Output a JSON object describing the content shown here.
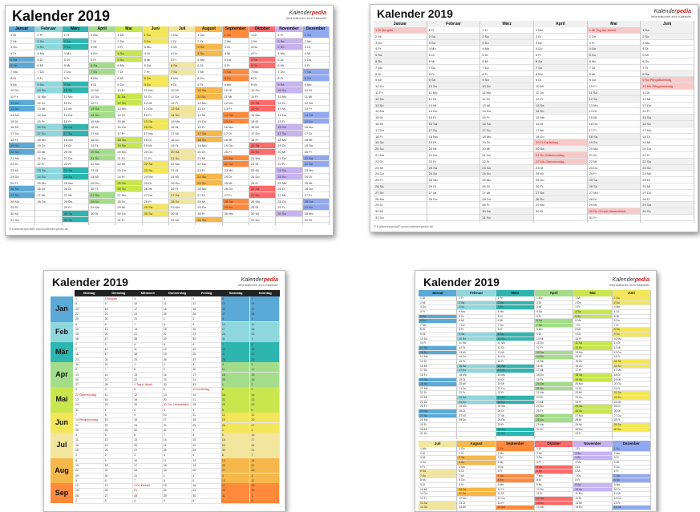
{
  "title": "Kalender 2019",
  "brand": {
    "name_pre": "Kalender",
    "name_accent": "pedia",
    "tagline": "Informationen zum Kalender"
  },
  "footer": "© Kalenderpedia®  www.kalenderpedia.de",
  "sheet1": {
    "months": [
      "Januar",
      "Februar",
      "März",
      "April",
      "Mai",
      "Juni",
      "Juli",
      "August",
      "September",
      "Oktober",
      "November",
      "Dezember"
    ],
    "colors": [
      "#5aa9d6",
      "#8ed7dd",
      "#2fb5b0",
      "#a3dd8a",
      "#c9e64f",
      "#f3e65a",
      "#f2e59e",
      "#f6b84a",
      "#ff8a3b",
      "#ff6a6a",
      "#c7b3f0",
      "#8fa8f0"
    ],
    "first_weekday": [
      1,
      4,
      4,
      0,
      2,
      5,
      0,
      3,
      6,
      1,
      4,
      6
    ],
    "days_in_month": [
      31,
      28,
      31,
      30,
      31,
      30,
      31,
      31,
      30,
      31,
      30,
      31
    ]
  },
  "sheet2": {
    "months": [
      "Januar",
      "Februar",
      "März",
      "April",
      "Mai",
      "Juni"
    ],
    "holidays": [
      "1 Di  Neujahr",
      "1 Mi  Tag der Arbeit",
      "19 Fr  Karfreitag",
      "21 So  Ostersonntag",
      "22 Mo  Ostermontag",
      "30 Do  Christi Himmelfahrt",
      "9 So  Pfingstsonntag",
      "10 Mo  Pfingstmontag"
    ]
  },
  "sheet3": {
    "weekdays": [
      "Montag",
      "Dienstag",
      "Mittwoch",
      "Donnerstag",
      "Freitag",
      "Samstag",
      "Sonntag"
    ],
    "months": [
      "Jan",
      "Feb",
      "Mär",
      "Apr",
      "Mai",
      "Jun",
      "Jul",
      "Aug",
      "Sep"
    ],
    "colors": [
      "#5aa9d6",
      "#8ed7dd",
      "#2fb5b0",
      "#a3dd8a",
      "#c9e64f",
      "#f3e65a",
      "#f2e59e",
      "#f6b84a",
      "#ff8a3b"
    ],
    "rows_per_month": [
      5,
      4,
      4,
      5,
      5,
      4,
      5,
      5,
      4
    ],
    "events": [
      "1 Neujahr",
      "19 Karfreitag",
      "22 Ostermontag",
      "1 Tag d. Arbeit",
      "30 Chr. Himmelfahrt",
      "10 Pfingstmontag",
      "3 Dt. Einheit"
    ]
  },
  "sheet4": {
    "top_months": [
      "Januar",
      "Februar",
      "März",
      "April",
      "Mai",
      "Juni"
    ],
    "bottom_months": [
      "Juli",
      "August",
      "September",
      "Oktober",
      "November",
      "Dezember"
    ],
    "top_colors": [
      "#5aa9d6",
      "#8ed7dd",
      "#2fb5b0",
      "#a3dd8a",
      "#c9e64f",
      "#f3e65a"
    ],
    "bottom_colors": [
      "#f2e59e",
      "#f6b84a",
      "#ff8a3b",
      "#ff6a6a",
      "#c7b3f0",
      "#8fa8f0"
    ],
    "top_first_weekday": [
      1,
      4,
      4,
      0,
      2,
      5
    ],
    "bottom_first_weekday": [
      0,
      3,
      6,
      1,
      4,
      6
    ],
    "top_days": [
      31,
      28,
      31,
      30,
      31,
      30
    ],
    "bottom_days": [
      31,
      31,
      30,
      31,
      30,
      31
    ]
  },
  "weekday_abbr": [
    "Mo",
    "Di",
    "Mi",
    "Do",
    "Fr",
    "Sa",
    "So"
  ]
}
